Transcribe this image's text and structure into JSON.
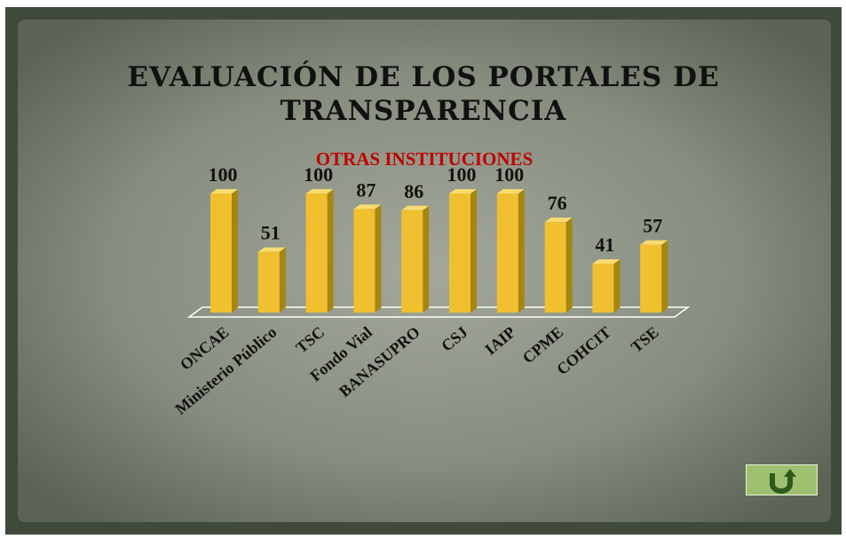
{
  "chart_data": {
    "type": "bar",
    "title": "EVALUACIÓN DE LOS PORTALES DE TRANSPARENCIA",
    "subtitle": "OTRAS INSTITUCIONES",
    "categories": [
      "ONCAE",
      "Ministerio Público",
      "TSC",
      "Fondo Vial",
      "BANASUPRO",
      "CSJ",
      "IAIP",
      "CPME",
      "COHCIT",
      "TSE"
    ],
    "values": [
      100,
      51,
      100,
      87,
      86,
      100,
      100,
      76,
      41,
      57
    ],
    "color": "#f0c030"
  }
}
